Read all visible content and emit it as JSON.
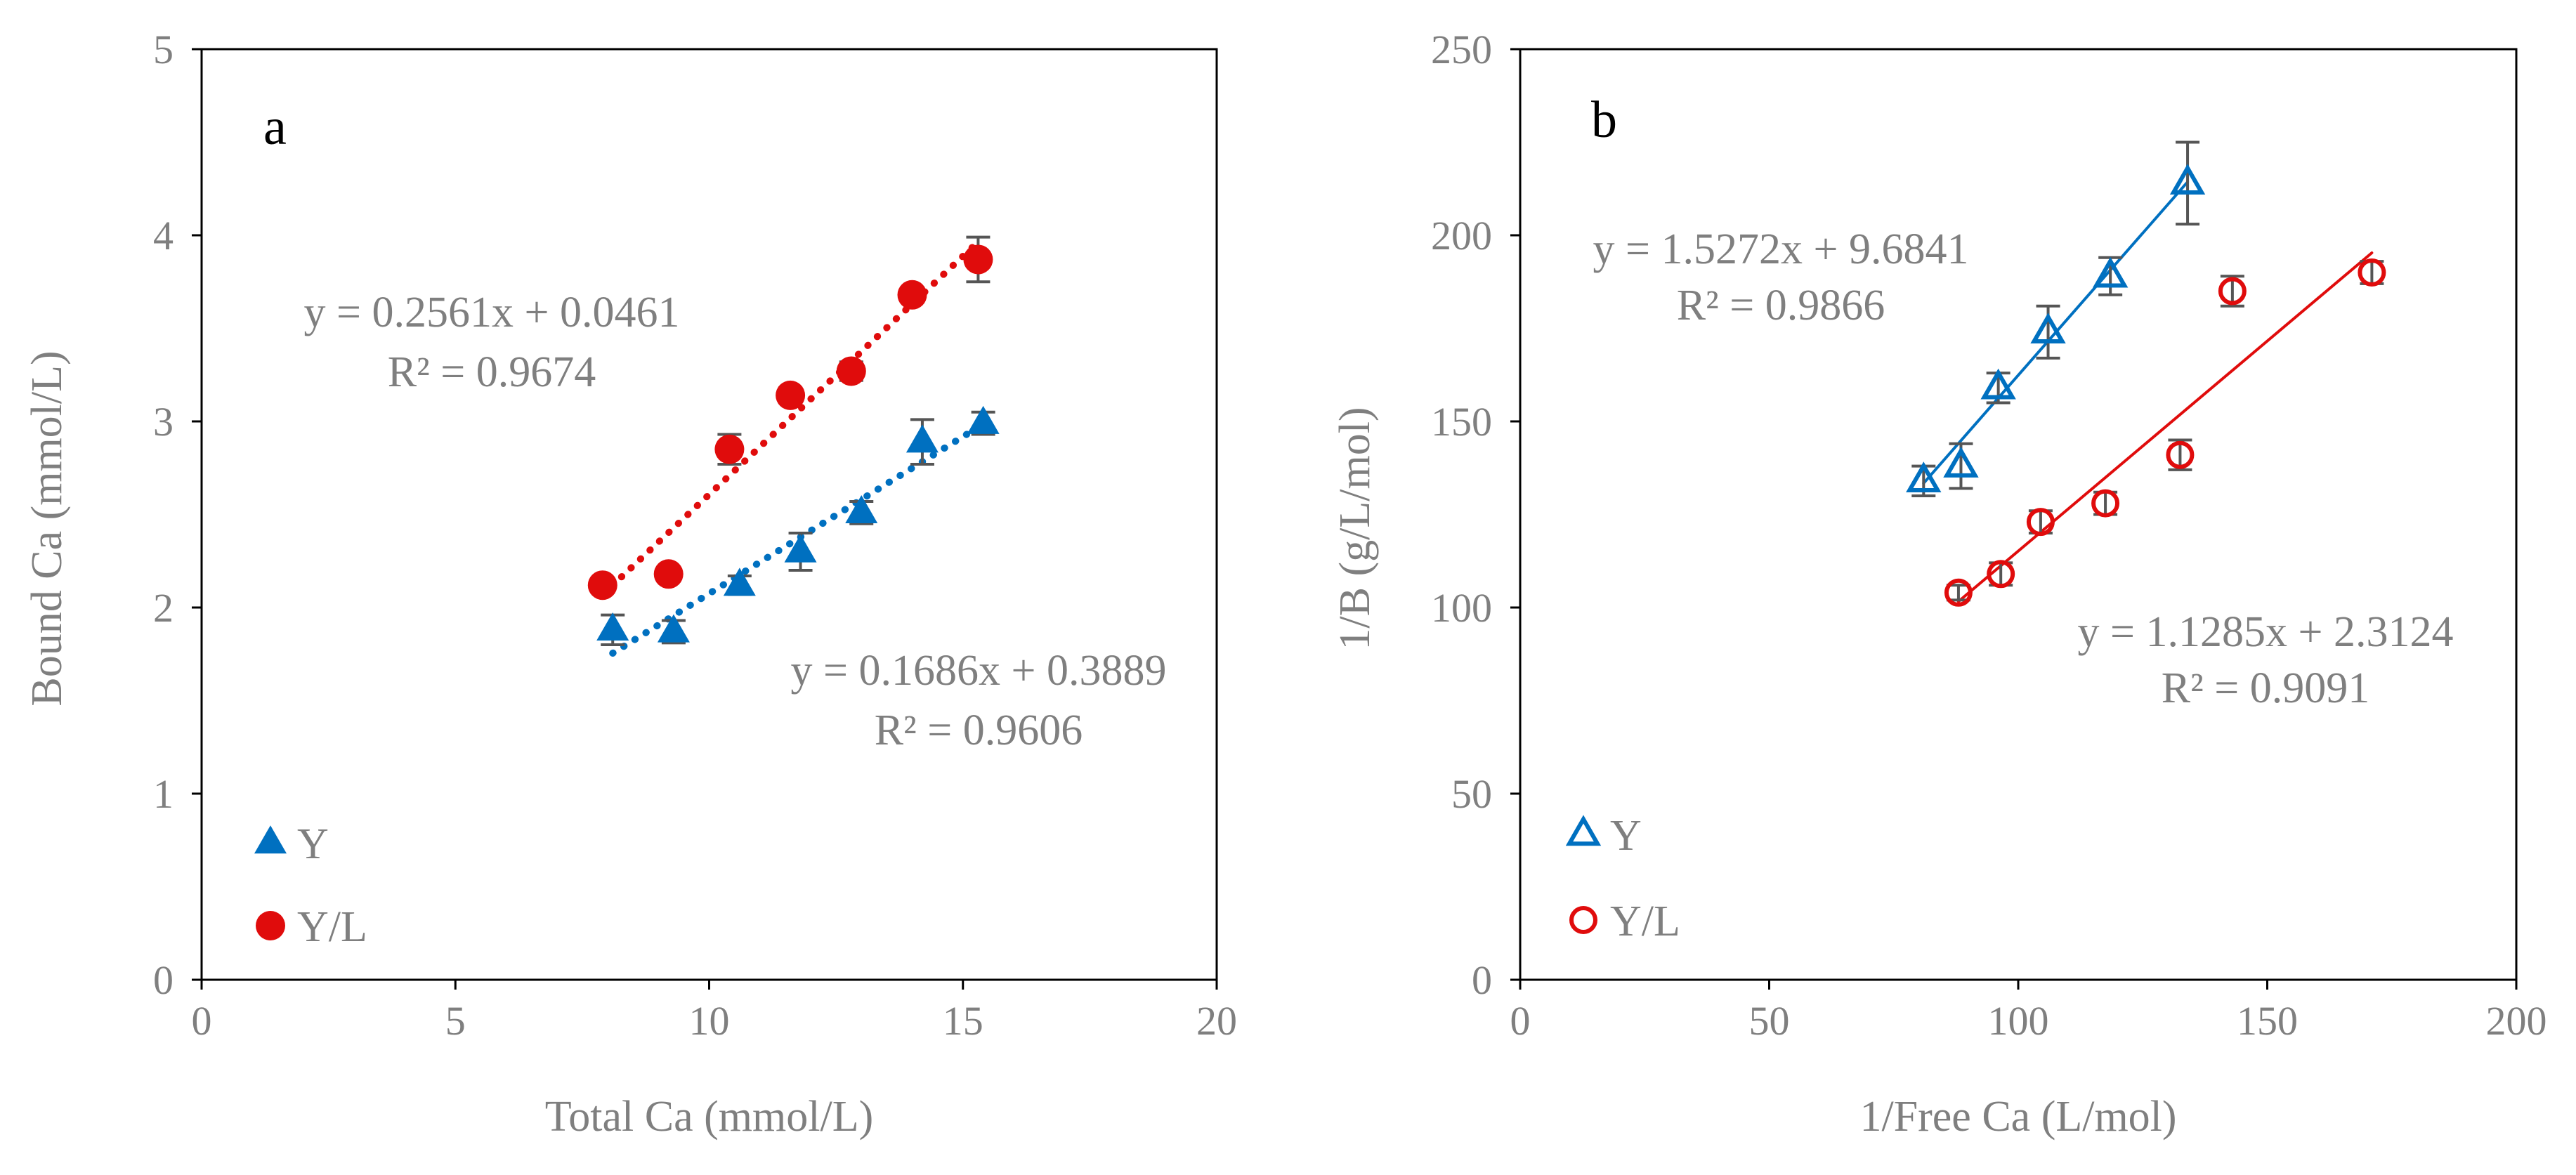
{
  "chart_data": [
    {
      "type": "scatter",
      "panel_label": "a",
      "xlabel": "Total Ca (mmol/L)",
      "ylabel": "Bound Ca (mmol/L)",
      "xlim": [
        0,
        20
      ],
      "ylim": [
        0,
        5
      ],
      "xticks": [
        0,
        5,
        10,
        15,
        20
      ],
      "yticks": [
        0,
        1,
        2,
        3,
        4,
        5
      ],
      "grid": false,
      "legend_position": "bottom-left",
      "series": [
        {
          "name": "Y",
          "marker": "filled-triangle",
          "color": "#0070c0",
          "x": [
            8.1,
            9.3,
            10.6,
            11.8,
            13.0,
            14.2,
            15.4
          ],
          "y": [
            1.88,
            1.87,
            2.12,
            2.3,
            2.51,
            2.89,
            2.99
          ],
          "error": [
            0.08,
            0.06,
            0.05,
            0.1,
            0.06,
            0.12,
            0.06
          ],
          "trend": {
            "style": "dotted",
            "slope": 0.1686,
            "intercept": 0.3889,
            "x_range": [
              8.1,
              15.4
            ]
          },
          "equation": "y = 0.1686x + 0.3889",
          "r2": "R² = 0.9606"
        },
        {
          "name": "Y/L",
          "marker": "filled-circle",
          "color": "#e00c0c",
          "x": [
            7.9,
            9.2,
            10.4,
            11.6,
            12.8,
            14.0,
            15.3
          ],
          "y": [
            2.12,
            2.18,
            2.85,
            3.14,
            3.27,
            3.68,
            3.87
          ],
          "error": [
            0.03,
            0.03,
            0.08,
            0.04,
            0.05,
            0.04,
            0.12
          ],
          "trend": {
            "style": "dotted",
            "slope": 0.2561,
            "intercept": 0.0461,
            "x_range": [
              7.9,
              15.3
            ]
          },
          "equation": "y = 0.2561x + 0.0461",
          "r2": "R² = 0.9674"
        }
      ]
    },
    {
      "type": "scatter",
      "panel_label": "b",
      "xlabel": "1/Free Ca (L/mol)",
      "ylabel": "1/B (g/L/mol)",
      "xlim": [
        0,
        200
      ],
      "ylim": [
        0,
        250
      ],
      "xticks": [
        0,
        50,
        100,
        150,
        200
      ],
      "yticks": [
        0,
        50,
        100,
        150,
        200,
        250
      ],
      "grid": false,
      "legend_position": "bottom-left",
      "series": [
        {
          "name": "Y",
          "marker": "open-triangle",
          "color": "#0070c0",
          "x": [
            81,
            88.5,
            96,
            106,
            118.5,
            134
          ],
          "y": [
            134,
            138,
            159,
            174,
            189,
            214
          ],
          "error": [
            4,
            6,
            4,
            7,
            5,
            11
          ],
          "trend": {
            "style": "solid",
            "slope": 1.5272,
            "intercept": 9.6841,
            "x_range": [
              81,
              134
            ]
          },
          "equation": "y = 1.5272x + 9.6841",
          "r2": "R² = 0.9866"
        },
        {
          "name": "Y/L",
          "marker": "open-circle",
          "color": "#e00c0c",
          "x": [
            88,
            96.5,
            104.5,
            117.5,
            132.5,
            143,
            171
          ],
          "y": [
            104,
            109,
            123,
            128,
            141,
            185,
            190
          ],
          "error": [
            2,
            3,
            3,
            3,
            4,
            4,
            3
          ],
          "trend": {
            "style": "solid",
            "slope": 1.1285,
            "intercept": 2.3124,
            "x_range": [
              88,
              171
            ]
          },
          "equation": "y = 1.1285x + 2.3124",
          "r2": "R² = 0.9091"
        }
      ]
    }
  ]
}
